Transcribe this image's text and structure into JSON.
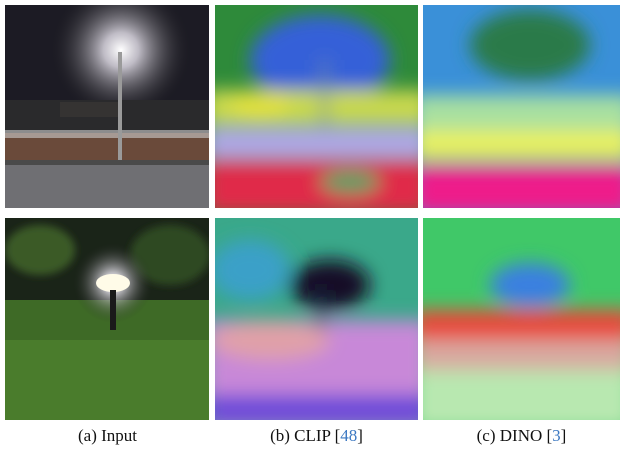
{
  "figure": {
    "captions": [
      {
        "parts": [
          "(a) Input"
        ]
      },
      {
        "parts": [
          "(b) CLIP [",
          "48",
          "]"
        ]
      },
      {
        "parts": [
          "(c) DINO [",
          "3",
          "]"
        ]
      }
    ]
  }
}
